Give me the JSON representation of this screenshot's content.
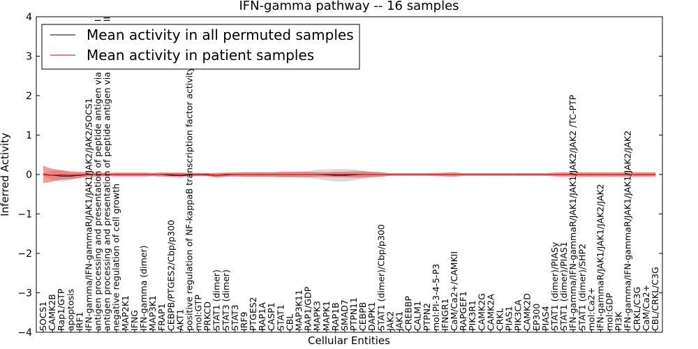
{
  "chart_data": {
    "type": "line",
    "title": "IFN-gamma pathway -- 16 samples",
    "xlabel": "Cellular Entities",
    "ylabel": "Inferred Activity",
    "ylim": [
      -4,
      4
    ],
    "yticks": [
      "−4",
      "−3",
      "−2",
      "−1",
      "0",
      "1",
      "2",
      "3",
      "4"
    ],
    "grid": false,
    "legend_position": "top-left",
    "categories": [
      "SOCS1",
      "CAMK2B",
      "Rap1/GTP",
      "apoptosis",
      "IRF1",
      "IFN-gamma/IFN-gammaR/JAK1/JAK1/JAK2/JAK2/SOCS1",
      "antigen processing and presentation of peptide antigen via MHC class I",
      "antigen processing and presentation of peptide antigen via MHC class II",
      "negative regulation of cell growth",
      "MAP2K1",
      "IFNG",
      "IFN-gamma (dimer)",
      "MAP3K1",
      "FRAP1",
      "CEBPB/PTGES2/Cbp/p300",
      "AKT1",
      "positive regulation of NF-kappaB transcription factor activity",
      "mol:GTP",
      "PRKCD",
      "STAT1 (dimer)",
      "STAT3 (dimer)",
      "STAT3",
      "IRF9",
      "PTGES2",
      "RAP1A",
      "CASP1",
      "STAT1",
      "CBL",
      "MAP3K11",
      "RAP1/GDP",
      "MAPK3",
      "MAPK1",
      "RAP1B",
      "SMAD7",
      "PTPN11",
      "CEBPB",
      "DAPK1",
      "STAT1 (dimer)/Cbp/p300",
      "JAK2",
      "JAK1",
      "CREBBP",
      "CALM1",
      "PTPN2",
      "mol:PI-3-4-5-P3",
      "IFNGR1",
      "CaM/Ca2+/CAMKII",
      "RAPGEF1",
      "PIK3R1",
      "CAMK2G",
      "CAMK2A",
      "CRKL",
      "PIAS1",
      "PIK3CA",
      "CAMK2D",
      "EP300",
      "PIAS4",
      "STAT1 (dimer)/PIASy",
      "STAT1 (dimer)/PIAS1",
      "IFN-gamma/IFN-gammaR/JAK1/JAK1/JAK2/JAK2 /TC-PTP",
      "STAT1 (dimer)/SHP2",
      "mol:Ca2+",
      "IFN-gammaR/JAK1/JAK1/JAK2/JAK2",
      "mol:GDP",
      "PI3K",
      "IFN-gamma/IFN-gammaR/JAK1/JAK1/JAK2/JAK2",
      "CRKL/C3G",
      "CaM/Ca2+",
      "CBL/CRKL/C3G"
    ],
    "series": [
      {
        "name": "Mean activity in all permuted samples",
        "color": "#000000",
        "band_color": "#bbbbbb",
        "values": [
          0,
          -0.02,
          -0.04,
          -0.04,
          -0.02,
          0,
          0,
          0,
          0,
          0,
          0,
          0,
          0,
          0,
          -0.02,
          -0.03,
          -0.01,
          0,
          -0.01,
          -0.02,
          -0.01,
          0,
          0,
          0,
          0,
          0,
          0,
          0,
          0,
          0,
          0,
          -0.01,
          -0.02,
          -0.02,
          -0.01,
          0,
          0,
          0,
          0,
          0,
          0,
          0,
          0,
          0,
          0,
          0,
          0,
          0,
          0,
          0,
          0,
          0,
          0,
          0,
          0,
          0,
          0,
          0,
          0,
          0,
          0,
          0,
          0,
          0,
          0,
          0,
          0,
          0
        ],
        "spread": [
          0.04,
          0.12,
          0.14,
          0.1,
          0.06,
          0.04,
          0.04,
          0.04,
          0.04,
          0.04,
          0.04,
          0.04,
          0.04,
          0.05,
          0.06,
          0.07,
          0.05,
          0.04,
          0.04,
          0.06,
          0.05,
          0.05,
          0.05,
          0.05,
          0.05,
          0.05,
          0.05,
          0.06,
          0.07,
          0.08,
          0.12,
          0.14,
          0.16,
          0.16,
          0.14,
          0.1,
          0.06,
          0.04,
          0.03,
          0.03,
          0.03,
          0.03,
          0.03,
          0.03,
          0.03,
          0.03,
          0.03,
          0.03,
          0.03,
          0.03,
          0.03,
          0.03,
          0.03,
          0.03,
          0.03,
          0.03,
          0.03,
          0.03,
          0.03,
          0.03,
          0.03,
          0.03,
          0.03,
          0.03,
          0.03,
          0.03,
          0.03,
          0.03
        ]
      },
      {
        "name": "Mean activity in patient samples",
        "color": "#cc0000",
        "band_color": "#ee4444",
        "values": [
          0,
          -0.02,
          -0.01,
          -0.02,
          -0.01,
          0,
          0,
          0,
          0,
          0,
          0,
          0,
          0,
          0,
          0,
          0,
          0,
          0,
          0,
          -0.02,
          0,
          0,
          0,
          0,
          0,
          0,
          0,
          0,
          0,
          0,
          0,
          0,
          0,
          0,
          0,
          0,
          0,
          0,
          0,
          0,
          0,
          0,
          0,
          0,
          0,
          0,
          0,
          0,
          0,
          0,
          0,
          0,
          0,
          0,
          0,
          0,
          0,
          0,
          0,
          0,
          0,
          0,
          0,
          0,
          0,
          0,
          0,
          0
        ],
        "spread": [
          0.22,
          0.16,
          0.12,
          0.1,
          0.08,
          0.06,
          0.05,
          0.04,
          0.05,
          0.05,
          0.05,
          0.05,
          0.04,
          0.05,
          0.05,
          0.05,
          0.04,
          0.04,
          0.04,
          0.06,
          0.05,
          0.05,
          0.06,
          0.06,
          0.06,
          0.06,
          0.07,
          0.07,
          0.07,
          0.07,
          0.06,
          0.06,
          0.07,
          0.07,
          0.08,
          0.08,
          0.07,
          0.06,
          0.03,
          0.03,
          0.03,
          0.03,
          0.03,
          0.04,
          0.05,
          0.06,
          0.03,
          0.03,
          0.03,
          0.03,
          0.03,
          0.03,
          0.03,
          0.03,
          0.03,
          0.03,
          0.05,
          0.06,
          0.06,
          0.06,
          0.06,
          0.06,
          0.06,
          0.06,
          0.06,
          0.06,
          0.06,
          0.06
        ]
      }
    ]
  }
}
